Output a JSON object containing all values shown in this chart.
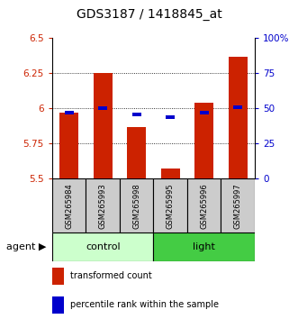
{
  "title": "GDS3187 / 1418845_at",
  "samples": [
    "GSM265984",
    "GSM265993",
    "GSM265998",
    "GSM265995",
    "GSM265996",
    "GSM265997"
  ],
  "red_values": [
    5.97,
    6.25,
    5.87,
    5.57,
    6.04,
    6.37
  ],
  "blue_values": [
    47,
    50,
    46,
    44,
    47,
    51
  ],
  "ylim_left": [
    5.5,
    6.5
  ],
  "ylim_right": [
    0,
    100
  ],
  "yticks_left": [
    5.5,
    5.75,
    6.0,
    6.25,
    6.5
  ],
  "ytick_labels_left": [
    "5.5",
    "5.75",
    "6",
    "6.25",
    "6.5"
  ],
  "yticks_right": [
    0,
    25,
    50,
    75,
    100
  ],
  "ytick_labels_right": [
    "0",
    "25",
    "50",
    "75",
    "100%"
  ],
  "red_color": "#cc2200",
  "blue_color": "#0000cc",
  "bar_bottom": 5.5,
  "control_color": "#ccffcc",
  "light_color": "#44cc44",
  "legend_red": "transformed count",
  "legend_blue": "percentile rank within the sample",
  "grid_ticks": [
    5.75,
    6.0,
    6.25
  ],
  "bar_width": 0.55,
  "sample_bg": "#cccccc"
}
